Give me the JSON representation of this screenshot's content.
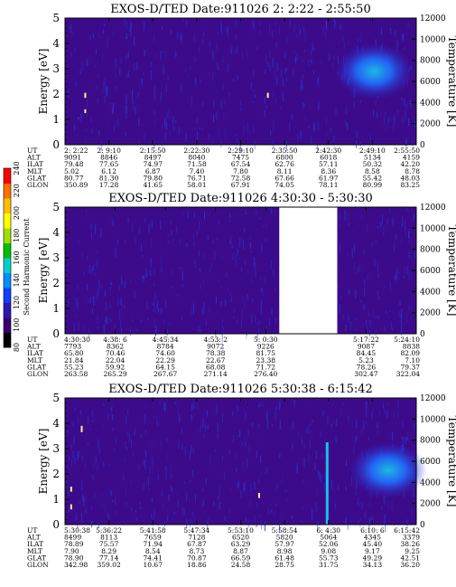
{
  "chart_data": [
    {
      "type": "heatmap",
      "title": "EXOS-D/TED   Date:911026  2: 2:22 - 2:55:50",
      "ylabel": "Energy [eV]",
      "y2label": "Temperature [K]",
      "ylim": [
        0,
        5
      ],
      "y2lim": [
        0,
        12000
      ],
      "yticks": [
        "0",
        "1",
        "2",
        "3",
        "4",
        "5"
      ],
      "y2ticks": [
        "0",
        "2000",
        "4000",
        "6000",
        "8000",
        "10000",
        "12000"
      ],
      "gap": null,
      "row_labels": [
        "UT",
        "ALT",
        "ILAT",
        "MLT",
        "GLAT",
        "GLON"
      ],
      "columns": [
        [
          "2: 2:22",
          "9091",
          "79.48",
          "5.02",
          "80.77",
          "350.89"
        ],
        [
          "2: 9:10",
          "8846",
          "77.65",
          "6.12",
          "81.30",
          "17.28"
        ],
        [
          "2:15:50",
          "8497",
          "74.97",
          "6.87",
          "79.80",
          "41.65"
        ],
        [
          "2:22:30",
          "8040",
          "71.58",
          "7.40",
          "76.71",
          "58.01"
        ],
        [
          "2:29:10",
          "7475",
          "67.54",
          "7.80",
          "72.58",
          "67.91"
        ],
        [
          "2:35:50",
          "6800",
          "62.76",
          "8.11",
          "67.66",
          "74.05"
        ],
        [
          "2:42:30",
          "6018",
          "57.11",
          "8.36",
          "61.97",
          "78.11"
        ],
        [
          "2:49:10",
          "5134",
          "50.32",
          "8.58",
          "55.42",
          "80.99"
        ],
        [
          "2:55:50",
          "4159",
          "42.20",
          "8.78",
          "48.03",
          "83.25"
        ]
      ]
    },
    {
      "type": "heatmap",
      "title": "EXOS-D/TED   Date:911026  4:30:30 - 5:30:30",
      "ylabel": "Energy [eV]",
      "y2label": "Temperature [K]",
      "ylim": [
        0,
        5
      ],
      "y2lim": [
        0,
        12000
      ],
      "yticks": [
        "0",
        "1",
        "2",
        "3",
        "4",
        "5"
      ],
      "y2ticks": [
        "0",
        "2000",
        "4000",
        "6000",
        "8000",
        "10000",
        "12000"
      ],
      "gap": "5:10:30 - 5:17:22",
      "row_labels": [
        "UT",
        "ALT",
        "ILAT",
        "MLT",
        "GLAT",
        "GLON"
      ],
      "columns": [
        [
          "4:30:30",
          "7793",
          "65.80",
          "21.84",
          "55.23",
          "263.58"
        ],
        [
          "4:38: 6",
          "8362",
          "70.46",
          "22.04",
          "59.92",
          "265.29"
        ],
        [
          "4:45:34",
          "8784",
          "74.60",
          "22.29",
          "64.15",
          "267.67"
        ],
        [
          "4:53: 2",
          "9072",
          "78.38",
          "22.67",
          "68.08",
          "271.14"
        ],
        [
          "5: 0:30",
          "9226",
          "81.75",
          "23.38",
          "71.72",
          "276.40"
        ],
        [
          "",
          "",
          "",
          "",
          "",
          ""
        ],
        [
          "5:17:22",
          "9087",
          "84.45",
          "5.23",
          "78.26",
          "302.47"
        ],
        [
          "5:24:10",
          "8838",
          "82.09",
          "7.10",
          "79.37",
          "322.04"
        ]
      ]
    },
    {
      "type": "heatmap",
      "title": "EXOS-D/TED   Date:911026  5:30:38 - 6:15:42",
      "ylabel": "Energy [eV]",
      "y2label": "Temperature [K]",
      "ylim": [
        0,
        5
      ],
      "y2lim": [
        0,
        12000
      ],
      "yticks": [
        "0",
        "1",
        "2",
        "3",
        "4",
        "5"
      ],
      "y2ticks": [
        "0",
        "2000",
        "4000",
        "6000",
        "8000",
        "10000",
        "12000"
      ],
      "gap": null,
      "row_labels": [
        "UT",
        "ALT",
        "ILAT",
        "MLT",
        "GLAT",
        "GLON"
      ],
      "columns": [
        [
          "5:30:38",
          "8499",
          "78.89",
          "7.90",
          "78.90",
          "342.98"
        ],
        [
          "5:36:22",
          "8113",
          "75.57",
          "8.29",
          "77.14",
          "359.02"
        ],
        [
          "5:41:58",
          "7659",
          "71.94",
          "8.54",
          "74.41",
          "10.67"
        ],
        [
          "5:47:34",
          "7128",
          "67.87",
          "8.73",
          "70.87",
          "18.86"
        ],
        [
          "5:53:10",
          "6520",
          "63.29",
          "8.87",
          "66.59",
          "24.58"
        ],
        [
          "5:58:54",
          "5820",
          "57.97",
          "8.98",
          "61.48",
          "28.75"
        ],
        [
          "6: 4:30",
          "5064",
          "52.06",
          "9.08",
          "55.73",
          "31.75"
        ],
        [
          "6:10: 6",
          "4345",
          "45.40",
          "9.17",
          "49.29",
          "34.13"
        ],
        [
          "6:15:42",
          "3379",
          "38.26",
          "9.25",
          "42.51",
          "36.20"
        ]
      ]
    }
  ],
  "colorbar": {
    "label": "Second Harmonic Current",
    "ticks": [
      "80",
      "100",
      "120",
      "140",
      "160",
      "180",
      "200",
      "220",
      "240"
    ],
    "colors": [
      "#000000",
      "#3a0070",
      "#2a1ab0",
      "#1040ff",
      "#0090ff",
      "#00d0d0",
      "#00c000",
      "#a0e000",
      "#ffff00",
      "#ffc000",
      "#ff7000",
      "#ff0000"
    ]
  },
  "colors": {
    "background": "#3c0b8c",
    "speckle": "#2a3dd8",
    "cyan": "#19c3e6",
    "yellow": "#fff08a",
    "gap": "#ffffff"
  }
}
